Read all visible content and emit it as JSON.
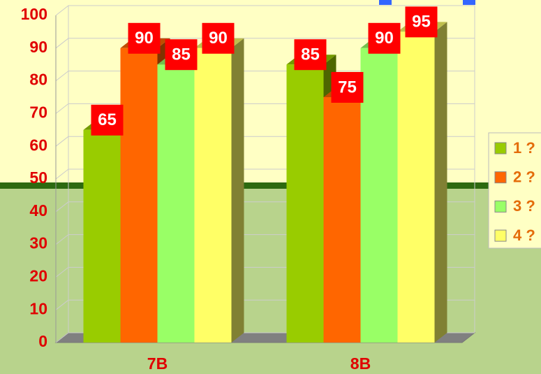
{
  "chart_data": {
    "type": "bar3d",
    "categories": [
      "7B",
      "8B"
    ],
    "series": [
      {
        "name": "1 ?",
        "color": "#99cc00",
        "values": [
          65,
          85
        ]
      },
      {
        "name": "2 ?",
        "color": "#ff6600",
        "values": [
          90,
          75
        ]
      },
      {
        "name": "3 ?",
        "color": "#99ff66",
        "values": [
          85,
          90
        ]
      },
      {
        "name": "4 ?",
        "color": "#ffff66",
        "values": [
          90,
          95
        ]
      }
    ],
    "ylim": [
      0,
      100
    ],
    "yticks": [
      0,
      10,
      20,
      30,
      40,
      50,
      60,
      70,
      80,
      90,
      100
    ],
    "grid": true,
    "legend": "right"
  }
}
